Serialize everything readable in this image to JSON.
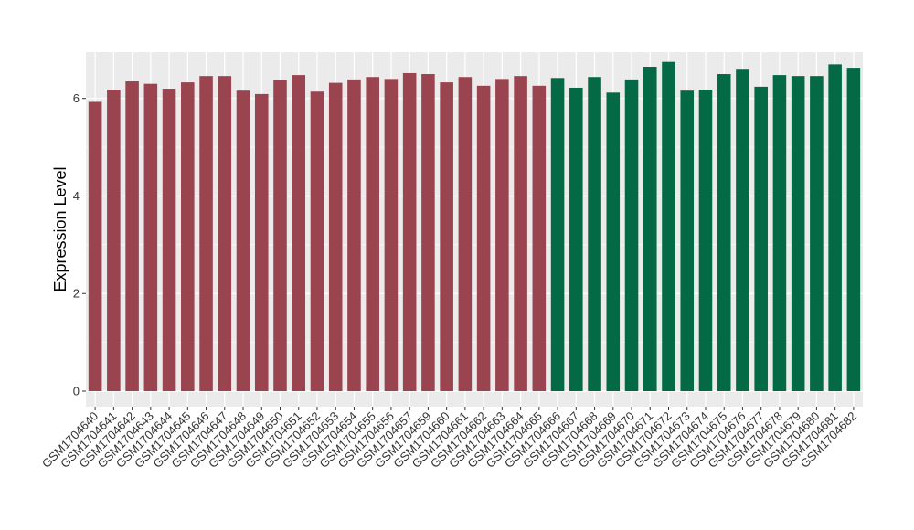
{
  "chart_data": {
    "type": "bar",
    "title": "",
    "xlabel": "",
    "ylabel": "Expression Level",
    "ylim": [
      0,
      6.95
    ],
    "y_ticks": [
      0,
      2,
      4,
      6
    ],
    "grid": true,
    "legend": "none",
    "categories": [
      "GSM1704640",
      "GSM1704641",
      "GSM1704642",
      "GSM1704643",
      "GSM1704644",
      "GSM1704645",
      "GSM1704646",
      "GSM1704647",
      "GSM1704648",
      "GSM1704649",
      "GSM1704650",
      "GSM1704651",
      "GSM1704652",
      "GSM1704653",
      "GSM1704654",
      "GSM1704655",
      "GSM1704656",
      "GSM1704657",
      "GSM1704659",
      "GSM1704660",
      "GSM1704661",
      "GSM1704662",
      "GSM1704663",
      "GSM1704664",
      "GSM1704665",
      "GSM1704666",
      "GSM1704667",
      "GSM1704668",
      "GSM1704669",
      "GSM1704670",
      "GSM1704671",
      "GSM1704672",
      "GSM1704673",
      "GSM1704674",
      "GSM1704675",
      "GSM1704676",
      "GSM1704677",
      "GSM1704678",
      "GSM1704679",
      "GSM1704680",
      "GSM1704681",
      "GSM1704682"
    ],
    "values": [
      5.93,
      6.18,
      6.35,
      6.3,
      6.2,
      6.33,
      6.46,
      6.46,
      6.16,
      6.09,
      6.37,
      6.48,
      6.14,
      6.32,
      6.39,
      6.44,
      6.4,
      6.52,
      6.5,
      6.33,
      6.44,
      6.26,
      6.4,
      6.46,
      6.26,
      6.42,
      6.22,
      6.44,
      6.12,
      6.39,
      6.65,
      6.75,
      6.16,
      6.18,
      6.5,
      6.59,
      6.24,
      6.48,
      6.46,
      6.46,
      6.7,
      6.63
    ],
    "groups": [
      0,
      0,
      0,
      0,
      0,
      0,
      0,
      0,
      0,
      0,
      0,
      0,
      0,
      0,
      0,
      0,
      0,
      0,
      0,
      0,
      0,
      0,
      0,
      0,
      0,
      1,
      1,
      1,
      1,
      1,
      1,
      1,
      1,
      1,
      1,
      1,
      1,
      1,
      1,
      1,
      1,
      1
    ],
    "colors": [
      "#9a4450",
      "#046a45"
    ],
    "panel_background": "#ebebeb",
    "grid_color": "#ffffff"
  }
}
